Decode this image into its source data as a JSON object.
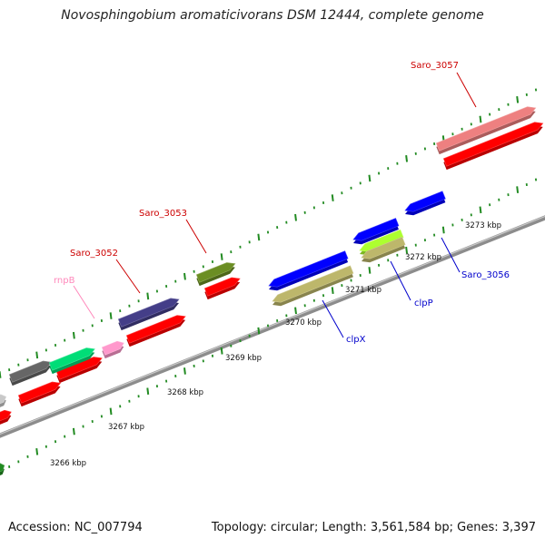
{
  "title": "Novosphingobium aromaticivorans DSM 12444, complete genome",
  "footer": {
    "accession": "Accession: NC_007794",
    "summary": "Topology: circular; Length: 3,561,584 bp; Genes: 3,397"
  },
  "colors": {
    "backbone": "#8c8c8c",
    "tick": "#228B22",
    "label_red": "#cc0000",
    "label_pink": "#ff88bb",
    "label_blue": "#0000cc",
    "scale_text": "#111111"
  },
  "scale_labels": [
    "3266 kbp",
    "3267 kbp",
    "3268 kbp",
    "3269 kbp",
    "3270 kbp",
    "3271 kbp",
    "3272 kbp",
    "3273 kbp"
  ],
  "features": [
    {
      "gene": "Saro_3052",
      "strand": "forward",
      "color": "#ff0000",
      "labeled": true,
      "label_color": "#cc0000"
    },
    {
      "gene": "Saro_3053",
      "strand": "forward",
      "color": "#ff0000",
      "labeled": true,
      "label_color": "#cc0000"
    },
    {
      "gene": "Saro_3057",
      "strand": "forward",
      "color": "#ff0000",
      "labeled": true,
      "label_color": "#cc0000"
    },
    {
      "gene": "Saro_3057",
      "strand": "forward",
      "color": "#ee8080",
      "labeled": false
    },
    {
      "gene": "rnpB",
      "strand": "forward",
      "color": "#ff99cc",
      "labeled": true,
      "label_color": "#ff88bb"
    },
    {
      "gene": "clpX",
      "strand": "reverse",
      "color": "#bdb76b",
      "labeled": true,
      "label_color": "#0000cc"
    },
    {
      "gene": "clpP",
      "strand": "reverse",
      "color": "#adff2f",
      "labeled": true,
      "label_color": "#0000cc"
    },
    {
      "gene": "Saro_3056",
      "strand": "reverse",
      "color": "#0000ff",
      "labeled": true,
      "label_color": "#0000cc"
    }
  ]
}
